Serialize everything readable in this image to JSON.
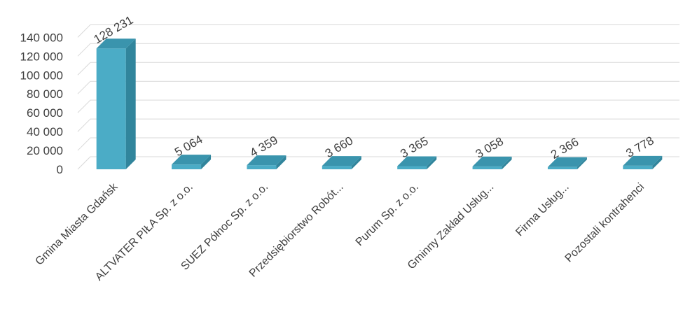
{
  "chart_data": {
    "type": "bar",
    "style": "3d-column",
    "categories": [
      "Gmina Miasta Gdańsk",
      "ALTVATER PIŁA Sp. z o.o.",
      "SUEZ Północ Sp. z o.o.",
      "Przedsiębiorstwo Robót...",
      "Purum Sp. z o.o.",
      "Gminny Zakład Usług...",
      "Firma Usług...",
      "Pozostali kontrahenci"
    ],
    "values": [
      128231,
      5064,
      4359,
      3660,
      3365,
      3058,
      2366,
      3778
    ],
    "data_labels": [
      "128 231",
      "5 064",
      "4 359",
      "3 660",
      "3 365",
      "3 058",
      "2 366",
      "3 778"
    ],
    "y_ticks": [
      "0",
      "20 000",
      "40 000",
      "60 000",
      "80 000",
      "100 000",
      "120 000",
      "140 000"
    ],
    "ylim": [
      0,
      140000
    ],
    "grid": true,
    "legend": "none",
    "title": "",
    "xlabel": "",
    "ylabel": "",
    "colors": {
      "bar_front": "#4bacc6",
      "bar_side": "#31859c",
      "bar_top": "#3a94ad",
      "grid": "#d9d9d9",
      "text": "#404040"
    }
  }
}
